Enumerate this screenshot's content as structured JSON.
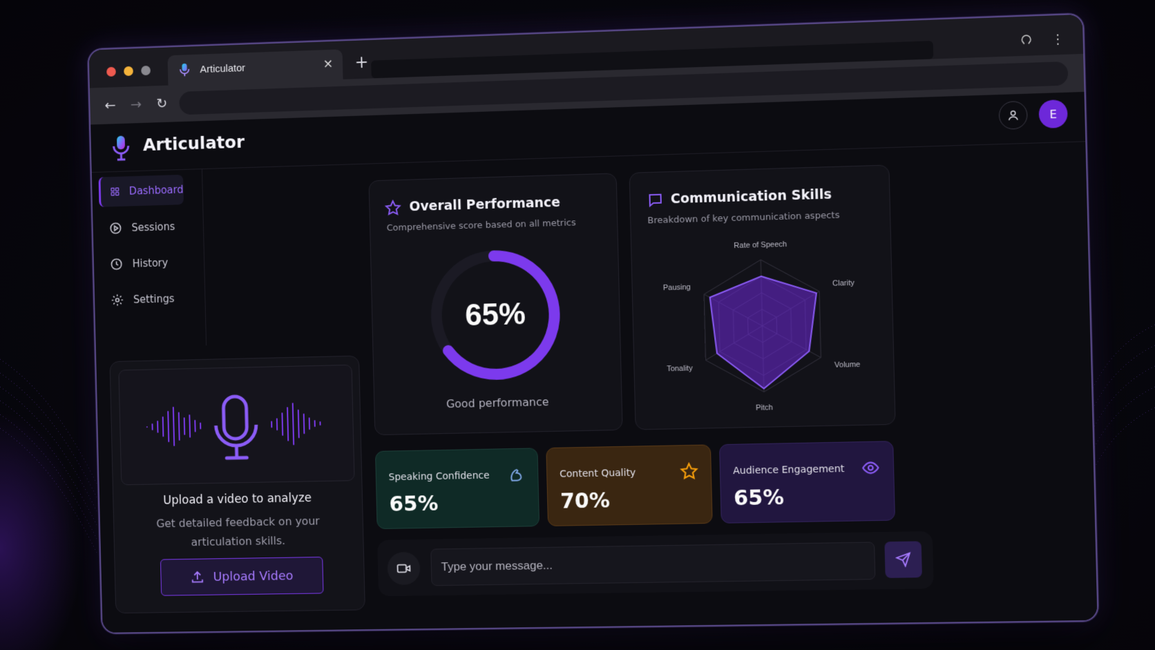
{
  "browser": {
    "tab_title": "Articulator",
    "close_glyph": "×",
    "new_tab_glyph": "+",
    "menu_glyph": "⋮",
    "back_glyph": "←",
    "forward_glyph": "→",
    "reload_glyph": "↻"
  },
  "app": {
    "brand": "Articulator",
    "avatar_initial": "E",
    "accent_color": "#7c3aed"
  },
  "sidebar": {
    "items": [
      {
        "label": "Dashboard",
        "icon": "grid-icon",
        "active": true
      },
      {
        "label": "Sessions",
        "icon": "play-circle-icon",
        "active": false
      },
      {
        "label": "History",
        "icon": "clock-icon",
        "active": false
      },
      {
        "label": "Settings",
        "icon": "gear-icon",
        "active": false
      }
    ]
  },
  "upload": {
    "title": "Upload a video to analyze",
    "subtitle": "Get detailed feedback on your articulation skills.",
    "button_label": "Upload Video"
  },
  "overall": {
    "title": "Overall Performance",
    "subtitle": "Comprehensive score based on all metrics",
    "value_text": "65%",
    "value": 0.65,
    "caption": "Good performance"
  },
  "communication": {
    "title": "Communication Skills",
    "subtitle": "Breakdown of key communication aspects",
    "axes": [
      "Rate of Speech",
      "Clarity",
      "Volume",
      "Pitch",
      "Tonality",
      "Pausing"
    ],
    "values": [
      0.75,
      0.95,
      0.8,
      0.95,
      0.8,
      0.9
    ]
  },
  "metrics": [
    {
      "label": "Speaking Confidence",
      "value": "65%",
      "icon": "flexed-arm-icon",
      "color": "#0f2a26"
    },
    {
      "label": "Content Quality",
      "value": "70%",
      "icon": "star-icon",
      "color": "#3a2611"
    },
    {
      "label": "Audience Engagement",
      "value": "65%",
      "icon": "eye-icon",
      "color": "#21163f"
    }
  ],
  "chat": {
    "placeholder": "Type your message..."
  }
}
